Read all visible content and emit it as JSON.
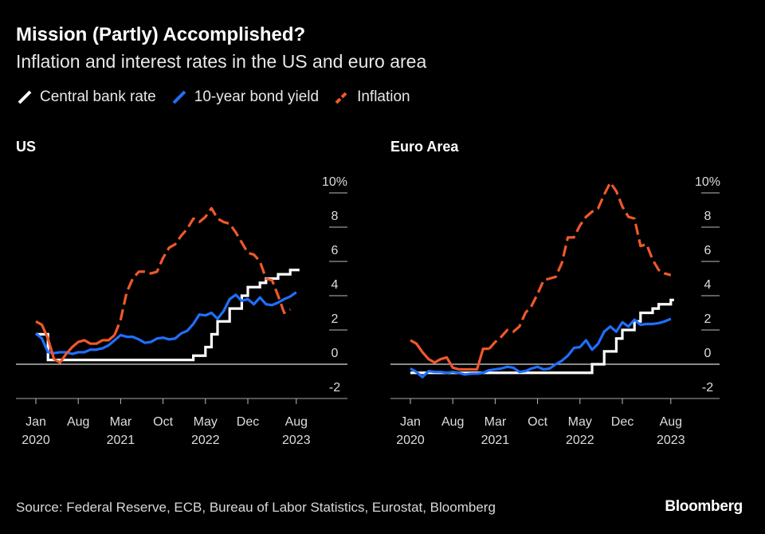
{
  "title": "Mission (Partly) Accomplished?",
  "subtitle": "Inflation and interest rates in the US and euro area",
  "legend": [
    {
      "name": "Central bank rate",
      "color": "#ffffff"
    },
    {
      "name": "10-year bond yield",
      "color": "#1f6fff"
    },
    {
      "name": "Inflation",
      "color": "#f0582a"
    }
  ],
  "source": "Source: Federal Reserve, ECB, Bureau of Labor Statistics, Eurostat, Bloomberg",
  "logo": "Bloomberg",
  "chart_data": [
    {
      "type": "line",
      "title": "US",
      "ylim": [
        -2,
        10
      ],
      "yticks": [
        "-2",
        "0",
        "2",
        "4",
        "6",
        "8",
        "10%"
      ],
      "xticks": [
        {
          "date": "2020-01",
          "label": "Jan",
          "year": "2020"
        },
        {
          "date": "2020-08",
          "label": "Aug",
          "year": ""
        },
        {
          "date": "2021-03",
          "label": "Mar",
          "year": "2021"
        },
        {
          "date": "2021-10",
          "label": "Oct",
          "year": ""
        },
        {
          "date": "2022-05",
          "label": "May",
          "year": "2022"
        },
        {
          "date": "2022-12",
          "label": "Dec",
          "year": ""
        },
        {
          "date": "2023-08",
          "label": "Aug",
          "year": "2023"
        }
      ],
      "start": "2020-01",
      "series": [
        {
          "name": "Central bank rate",
          "values": [
            1.75,
            1.75,
            0.25,
            0.25,
            0.25,
            0.25,
            0.25,
            0.25,
            0.25,
            0.25,
            0.25,
            0.25,
            0.25,
            0.25,
            0.25,
            0.25,
            0.25,
            0.25,
            0.25,
            0.25,
            0.25,
            0.25,
            0.25,
            0.25,
            0.25,
            0.25,
            0.5,
            0.5,
            1.0,
            1.75,
            2.5,
            2.5,
            3.25,
            3.25,
            4.0,
            4.5,
            4.5,
            4.75,
            5.0,
            5.0,
            5.25,
            5.25,
            5.5,
            5.5
          ]
        },
        {
          "name": "10-year bond yield",
          "values": [
            1.8,
            1.5,
            0.7,
            0.65,
            0.7,
            0.7,
            0.6,
            0.7,
            0.7,
            0.85,
            0.85,
            0.93,
            1.1,
            1.4,
            1.7,
            1.6,
            1.6,
            1.45,
            1.25,
            1.3,
            1.5,
            1.55,
            1.45,
            1.5,
            1.8,
            1.95,
            2.35,
            2.9,
            2.85,
            3.0,
            2.65,
            3.1,
            3.8,
            4.05,
            3.7,
            3.8,
            3.5,
            3.9,
            3.5,
            3.45,
            3.6,
            3.8,
            3.95,
            4.2
          ]
        },
        {
          "name": "Inflation",
          "dashed_from": "2021-02",
          "values": [
            2.5,
            2.3,
            1.5,
            0.3,
            0.1,
            0.6,
            1.0,
            1.3,
            1.4,
            1.2,
            1.2,
            1.4,
            1.4,
            1.7,
            2.6,
            4.2,
            5.0,
            5.4,
            5.4,
            5.3,
            5.4,
            6.2,
            6.8,
            7.0,
            7.5,
            7.9,
            8.5,
            8.3,
            8.6,
            9.1,
            8.5,
            8.3,
            8.2,
            7.7,
            7.1,
            6.5,
            6.4,
            6.0,
            5.0,
            4.9,
            4.0,
            3.0,
            3.2
          ]
        }
      ]
    },
    {
      "type": "line",
      "title": "Euro Area",
      "ylim": [
        -2,
        10
      ],
      "yticks": [
        "-2",
        "0",
        "2",
        "4",
        "6",
        "8",
        "10%"
      ],
      "xticks": [
        {
          "date": "2020-01",
          "label": "Jan",
          "year": "2020"
        },
        {
          "date": "2020-08",
          "label": "Aug",
          "year": ""
        },
        {
          "date": "2021-03",
          "label": "Mar",
          "year": "2021"
        },
        {
          "date": "2021-10",
          "label": "Oct",
          "year": ""
        },
        {
          "date": "2022-05",
          "label": "May",
          "year": "2022"
        },
        {
          "date": "2022-12",
          "label": "Dec",
          "year": ""
        },
        {
          "date": "2023-08",
          "label": "Aug",
          "year": "2023"
        }
      ],
      "start": "2020-01",
      "series": [
        {
          "name": "Central bank rate",
          "values": [
            -0.5,
            -0.5,
            -0.5,
            -0.5,
            -0.5,
            -0.5,
            -0.5,
            -0.5,
            -0.5,
            -0.5,
            -0.5,
            -0.5,
            -0.5,
            -0.5,
            -0.5,
            -0.5,
            -0.5,
            -0.5,
            -0.5,
            -0.5,
            -0.5,
            -0.5,
            -0.5,
            -0.5,
            -0.5,
            -0.5,
            -0.5,
            -0.5,
            -0.5,
            -0.5,
            0.0,
            0.0,
            0.75,
            0.75,
            1.5,
            2.0,
            2.0,
            2.5,
            3.0,
            3.0,
            3.25,
            3.5,
            3.5,
            3.75
          ]
        },
        {
          "name": "10-year bond yield",
          "values": [
            -0.25,
            -0.45,
            -0.75,
            -0.4,
            -0.45,
            -0.45,
            -0.5,
            -0.45,
            -0.5,
            -0.6,
            -0.55,
            -0.55,
            -0.5,
            -0.35,
            -0.3,
            -0.25,
            -0.15,
            -0.2,
            -0.45,
            -0.4,
            -0.25,
            -0.15,
            -0.3,
            -0.25,
            0.0,
            0.2,
            0.5,
            0.95,
            1.0,
            1.4,
            0.85,
            1.2,
            1.9,
            2.2,
            1.9,
            2.45,
            2.2,
            2.6,
            2.3,
            2.35,
            2.35,
            2.4,
            2.5,
            2.65
          ]
        },
        {
          "name": "Inflation",
          "dashed_from": "2021-02",
          "values": [
            1.4,
            1.2,
            0.7,
            0.3,
            0.1,
            0.3,
            0.4,
            -0.2,
            -0.3,
            -0.3,
            -0.3,
            -0.3,
            0.9,
            0.9,
            1.3,
            1.6,
            2.0,
            1.9,
            2.2,
            3.0,
            3.4,
            4.1,
            4.9,
            5.0,
            5.1,
            5.9,
            7.4,
            7.4,
            8.1,
            8.6,
            8.9,
            9.1,
            9.9,
            10.6,
            10.1,
            9.2,
            8.6,
            8.5,
            6.9,
            7.0,
            6.1,
            5.5,
            5.3,
            5.2
          ]
        }
      ]
    }
  ]
}
